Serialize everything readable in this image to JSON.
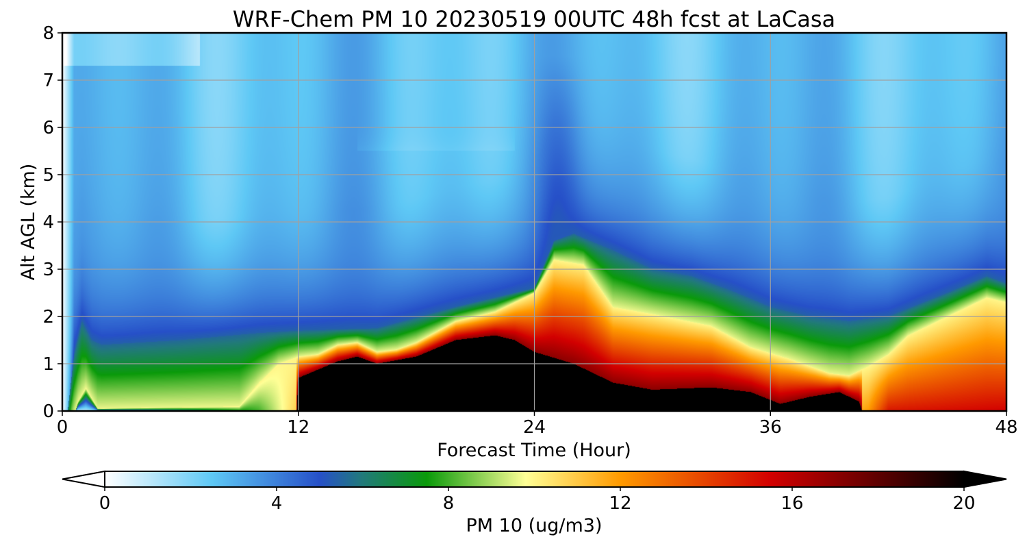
{
  "chart_data": {
    "type": "heatmap",
    "title": "WRF-Chem PM 10  20230519 00UTC 48h fcst at LaCasa",
    "xlabel": "Forecast Time (Hour)",
    "ylabel": "Alt AGL (km)",
    "xlim": [
      0,
      48
    ],
    "ylim": [
      0,
      8
    ],
    "x_ticks": [
      0,
      12,
      24,
      36,
      48
    ],
    "y_ticks": [
      0,
      1,
      2,
      3,
      4,
      5,
      6,
      7,
      8
    ],
    "grid": true,
    "colorbar": {
      "label": "PM 10  (ug/m3)",
      "range": [
        0,
        20
      ],
      "ticks": [
        0,
        4,
        8,
        12,
        16,
        20
      ],
      "extend": "both",
      "orientation": "horizontal",
      "placement": "bottom",
      "color_stops": [
        {
          "v": 0,
          "c": "#ffffff"
        },
        {
          "v": 2.5,
          "c": "#5ec8f5"
        },
        {
          "v": 5,
          "c": "#2650c8"
        },
        {
          "v": 6,
          "c": "#217a7a"
        },
        {
          "v": 7.5,
          "c": "#0a9a0a"
        },
        {
          "v": 9.8,
          "c": "#ffff96"
        },
        {
          "v": 12,
          "c": "#ff9a00"
        },
        {
          "v": 15.5,
          "c": "#d20000"
        },
        {
          "v": 20,
          "c": "#000000"
        }
      ]
    },
    "features": {
      "top_blue_wedge_core": {
        "x": 25.2,
        "value": 5.2
      },
      "black_core_max_height_km": 1.6
    }
  }
}
